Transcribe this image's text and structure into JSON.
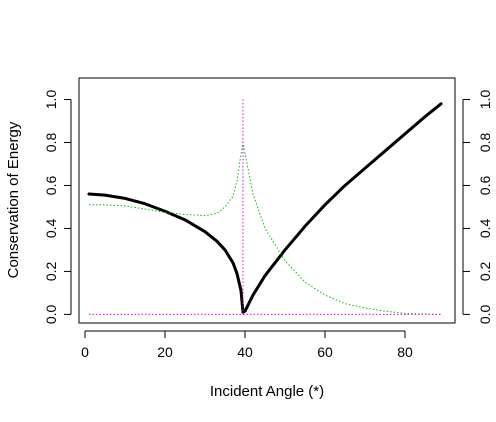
{
  "chart_data": {
    "type": "line",
    "title": "",
    "xlabel": "Incident Angle (*)",
    "ylabel": "Conservation of Energy",
    "xlim": [
      -1.5,
      92.5
    ],
    "ylim": [
      -0.04,
      1.1
    ],
    "x_ticks": [
      0,
      20,
      40,
      60,
      80
    ],
    "y_ticks": [
      0.0,
      0.2,
      0.4,
      0.6,
      0.8,
      1.0
    ],
    "x_tick_labels": [
      "0",
      "20",
      "40",
      "60",
      "80"
    ],
    "y_tick_labels": [
      "0.0",
      "0.2",
      "0.4",
      "0.6",
      "0.8",
      "1.0"
    ],
    "right_axis_tick_labels": [
      "0.0",
      "0.2",
      "0.4",
      "0.6",
      "0.8",
      "1.0"
    ],
    "grid": false,
    "series": [
      {
        "color": "#000000",
        "style": "solid-thick",
        "x": [
          1,
          5,
          10,
          15,
          20,
          25,
          30,
          33,
          35,
          37,
          38,
          39,
          39.5,
          40,
          42,
          45,
          50,
          55,
          60,
          65,
          70,
          75,
          80,
          85,
          89
        ],
        "y": [
          0.56,
          0.555,
          0.54,
          0.515,
          0.48,
          0.44,
          0.385,
          0.34,
          0.3,
          0.24,
          0.19,
          0.11,
          0.01,
          0.015,
          0.09,
          0.18,
          0.3,
          0.41,
          0.51,
          0.6,
          0.68,
          0.76,
          0.84,
          0.92,
          0.98
        ]
      },
      {
        "color": "#00bb00",
        "style": "dotted",
        "x": [
          1,
          5,
          10,
          15,
          20,
          25,
          30,
          33,
          35,
          37,
          38,
          38.8,
          39.5,
          40,
          42,
          45,
          50,
          55,
          60,
          65,
          70,
          75,
          80,
          85,
          89
        ],
        "y": [
          0.51,
          0.51,
          0.505,
          0.49,
          0.475,
          0.465,
          0.46,
          0.47,
          0.5,
          0.55,
          0.62,
          0.72,
          0.8,
          0.75,
          0.56,
          0.4,
          0.25,
          0.15,
          0.09,
          0.05,
          0.03,
          0.015,
          0.005,
          0.0,
          0.0
        ]
      },
      {
        "color": "#ee00ee",
        "style": "dotted",
        "x": [
          1,
          89
        ],
        "y": [
          0.0,
          0.0
        ]
      },
      {
        "color": "#ee00ee",
        "style": "dotted",
        "x": [
          39.5,
          39.5
        ],
        "y": [
          0.0,
          1.0
        ]
      }
    ]
  }
}
